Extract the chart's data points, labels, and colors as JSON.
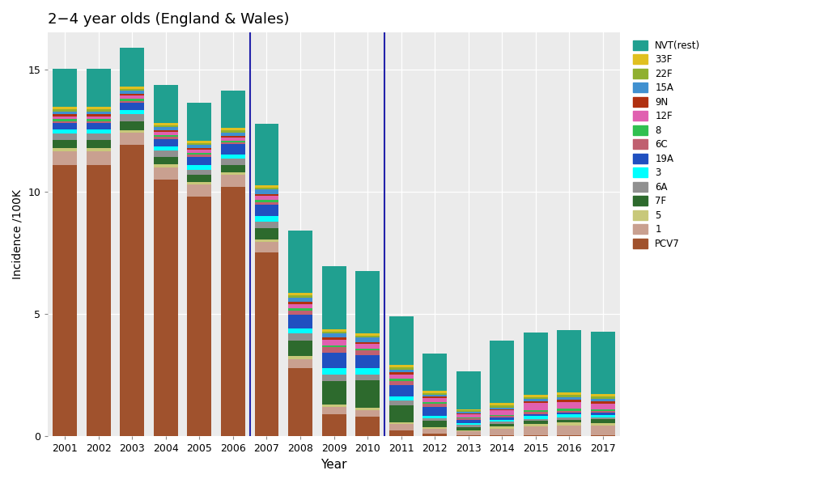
{
  "title": "2−4 year olds (England & Wales)",
  "xlabel": "Year",
  "ylabel": "Incidence /100K",
  "years": [
    2001,
    2002,
    2003,
    2004,
    2005,
    2006,
    2007,
    2008,
    2009,
    2010,
    2011,
    2012,
    2013,
    2014,
    2015,
    2016,
    2017
  ],
  "categories": [
    "PCV7",
    "1",
    "5",
    "7F",
    "6A",
    "3",
    "19A",
    "6C",
    "8",
    "12F",
    "9N",
    "15A",
    "22F",
    "33F",
    "NVT(rest)"
  ],
  "colors": {
    "PCV7": "#a0522d",
    "1": "#c9a090",
    "5": "#c8c87a",
    "7F": "#2d6a2d",
    "6A": "#909090",
    "3": "#00ffff",
    "19A": "#2050c0",
    "6C": "#c06070",
    "8": "#30c050",
    "12F": "#e060b0",
    "9N": "#b03010",
    "15A": "#4090d0",
    "22F": "#90b030",
    "33F": "#e0c020",
    "NVT(rest)": "#20a090"
  },
  "data": {
    "PCV7": [
      11.1,
      11.1,
      11.9,
      10.5,
      9.8,
      10.2,
      7.5,
      2.8,
      0.9,
      0.8,
      0.25,
      0.1,
      0.05,
      0.05,
      0.05,
      0.05,
      0.05
    ],
    "1": [
      0.55,
      0.55,
      0.5,
      0.5,
      0.5,
      0.5,
      0.45,
      0.35,
      0.3,
      0.28,
      0.25,
      0.2,
      0.15,
      0.25,
      0.35,
      0.4,
      0.38
    ],
    "5": [
      0.12,
      0.12,
      0.12,
      0.12,
      0.1,
      0.1,
      0.1,
      0.12,
      0.1,
      0.1,
      0.08,
      0.08,
      0.06,
      0.1,
      0.12,
      0.12,
      0.12
    ],
    "7F": [
      0.35,
      0.35,
      0.35,
      0.3,
      0.28,
      0.3,
      0.45,
      0.65,
      0.95,
      1.1,
      0.7,
      0.25,
      0.12,
      0.12,
      0.12,
      0.12,
      0.15
    ],
    "6A": [
      0.25,
      0.25,
      0.28,
      0.25,
      0.22,
      0.25,
      0.28,
      0.28,
      0.28,
      0.25,
      0.18,
      0.1,
      0.08,
      0.08,
      0.08,
      0.08,
      0.08
    ],
    "3": [
      0.18,
      0.18,
      0.18,
      0.18,
      0.18,
      0.18,
      0.22,
      0.22,
      0.25,
      0.25,
      0.18,
      0.12,
      0.08,
      0.08,
      0.12,
      0.12,
      0.1
    ],
    "19A": [
      0.25,
      0.25,
      0.3,
      0.3,
      0.35,
      0.4,
      0.45,
      0.55,
      0.65,
      0.55,
      0.45,
      0.35,
      0.12,
      0.08,
      0.08,
      0.08,
      0.08
    ],
    "6C": [
      0.08,
      0.08,
      0.08,
      0.08,
      0.08,
      0.08,
      0.12,
      0.18,
      0.22,
      0.18,
      0.18,
      0.12,
      0.08,
      0.08,
      0.08,
      0.08,
      0.08
    ],
    "8": [
      0.08,
      0.08,
      0.08,
      0.08,
      0.08,
      0.08,
      0.08,
      0.08,
      0.08,
      0.08,
      0.08,
      0.08,
      0.04,
      0.04,
      0.08,
      0.08,
      0.08
    ],
    "12F": [
      0.12,
      0.12,
      0.12,
      0.12,
      0.12,
      0.12,
      0.18,
      0.18,
      0.22,
      0.18,
      0.18,
      0.18,
      0.12,
      0.18,
      0.28,
      0.28,
      0.22
    ],
    "9N": [
      0.08,
      0.08,
      0.08,
      0.08,
      0.08,
      0.08,
      0.08,
      0.08,
      0.08,
      0.08,
      0.08,
      0.04,
      0.04,
      0.04,
      0.08,
      0.08,
      0.08
    ],
    "15A": [
      0.12,
      0.12,
      0.12,
      0.12,
      0.12,
      0.12,
      0.18,
      0.18,
      0.18,
      0.18,
      0.12,
      0.08,
      0.08,
      0.08,
      0.08,
      0.12,
      0.12
    ],
    "22F": [
      0.08,
      0.08,
      0.08,
      0.08,
      0.08,
      0.08,
      0.08,
      0.08,
      0.08,
      0.08,
      0.08,
      0.08,
      0.04,
      0.08,
      0.08,
      0.08,
      0.08
    ],
    "33F": [
      0.1,
      0.1,
      0.1,
      0.1,
      0.1,
      0.1,
      0.1,
      0.1,
      0.1,
      0.1,
      0.1,
      0.1,
      0.04,
      0.1,
      0.1,
      0.1,
      0.1
    ],
    "NVT(rest)": [
      1.55,
      1.55,
      1.6,
      1.55,
      1.55,
      1.55,
      2.5,
      2.55,
      2.55,
      2.55,
      2.0,
      1.5,
      1.55,
      2.55,
      2.55,
      2.55,
      2.55
    ]
  },
  "ylim": [
    0,
    16.5
  ],
  "yticks": [
    0,
    5,
    10,
    15
  ],
  "background_color": "#ebebeb",
  "vline_color": "#2222aa",
  "bar_width": 0.72
}
